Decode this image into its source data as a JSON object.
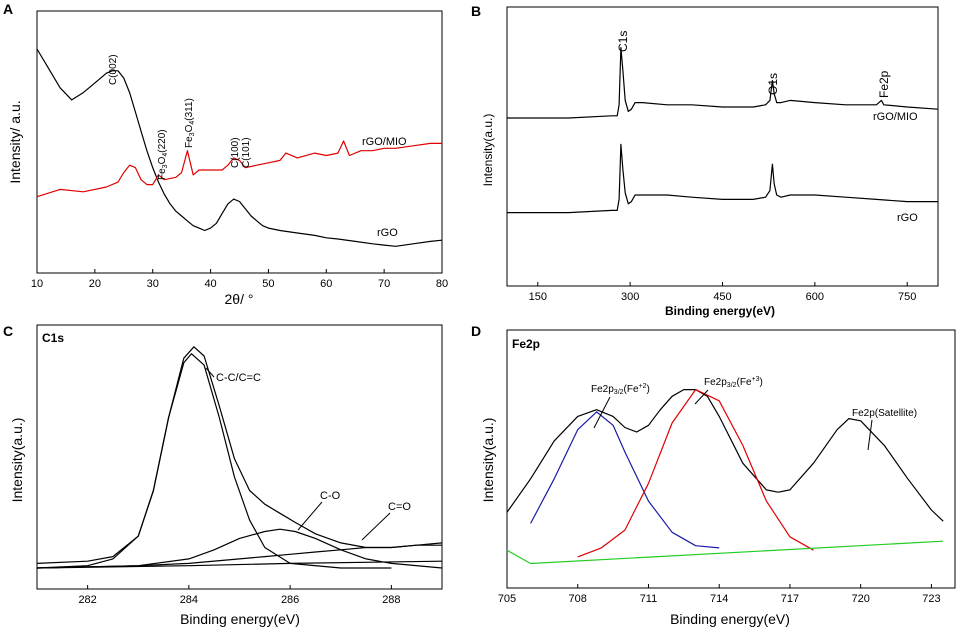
{
  "colors": {
    "black": "#000000",
    "red": "#e00000",
    "blue": "#1a1aa6",
    "green": "#22cc22"
  },
  "chart_data": [
    {
      "panel": "A",
      "type": "line",
      "xlabel": "2θ/ °",
      "ylabel": "Intensity/ a.u.",
      "xlim": [
        10,
        80
      ],
      "ylim": [
        0,
        100
      ],
      "xticks": [
        "10",
        "20",
        "30",
        "40",
        "50",
        "60",
        "70",
        "80"
      ],
      "series": [
        {
          "name": "rGO",
          "color": "#000000",
          "x": [
            10,
            12,
            14,
            16,
            18,
            20,
            22,
            23,
            24,
            25,
            26,
            27,
            28,
            29,
            30,
            31,
            32,
            33,
            34,
            35,
            36,
            37,
            38,
            39,
            40,
            41,
            42,
            43,
            44,
            45,
            46,
            47,
            48,
            49,
            50,
            52,
            55,
            58,
            60,
            62,
            65,
            68,
            70,
            72,
            75,
            78,
            80
          ],
          "y": [
            88,
            80,
            72,
            67,
            70,
            74,
            78,
            79,
            79,
            76,
            70,
            62,
            54,
            46,
            39,
            33,
            28,
            24,
            21,
            19,
            17,
            15,
            14,
            13,
            14,
            16,
            20,
            24,
            26,
            25,
            22,
            19,
            17,
            15,
            14,
            13,
            12,
            11,
            10,
            9.5,
            8.5,
            7.5,
            7,
            6.5,
            7.5,
            8.5,
            9
          ]
        },
        {
          "name": "rGO/MIO",
          "color": "#e00000",
          "x": [
            10,
            14,
            18,
            22,
            24,
            25,
            26,
            27,
            28,
            29,
            30,
            31,
            32,
            34,
            35,
            36,
            37,
            38,
            40,
            42,
            43,
            44,
            45,
            46,
            48,
            50,
            52,
            53,
            55,
            58,
            60,
            62,
            63,
            64,
            66,
            68,
            70,
            72,
            75,
            78,
            80
          ],
          "y": [
            27,
            30,
            29,
            31,
            33,
            37,
            40,
            39,
            34,
            32,
            32,
            36,
            34,
            35,
            37,
            46,
            36,
            38,
            38,
            38,
            40,
            43,
            42,
            39,
            40,
            41,
            42,
            45,
            43,
            45,
            44,
            45,
            50,
            44,
            46,
            46,
            47,
            47,
            48,
            49,
            49
          ]
        }
      ],
      "annotations": [
        "C(002)",
        "Fe3O4(220)",
        "Fe3O4(311)",
        "C(100)",
        "C(101)"
      ],
      "legend": [
        "rGO/MIO",
        "rGO"
      ]
    },
    {
      "panel": "B",
      "type": "line",
      "xlabel": "Binding energy(eV)",
      "ylabel": "Intensity(a.u.)",
      "xlim": [
        100,
        800
      ],
      "ylim": [
        0,
        100
      ],
      "xticks": [
        "150",
        "300",
        "450",
        "600",
        "750"
      ],
      "series": [
        {
          "name": "rGO/MIO",
          "color": "#000000",
          "x": [
            100,
            200,
            270,
            279,
            282,
            285,
            288,
            292,
            297,
            302,
            308,
            320,
            360,
            400,
            450,
            500,
            520,
            527,
            531,
            534,
            538,
            545,
            560,
            600,
            650,
            700,
            708,
            712,
            750,
            800
          ],
          "y": [
            60,
            60,
            61,
            61,
            66,
            92,
            82,
            68,
            63,
            64,
            67,
            67,
            66,
            66,
            65,
            65,
            66,
            68,
            77,
            71,
            67,
            67,
            68,
            67,
            66,
            66,
            68,
            66,
            65,
            64
          ]
        },
        {
          "name": "rGO",
          "color": "#000000",
          "x": [
            100,
            200,
            270,
            279,
            282,
            285,
            288,
            292,
            297,
            302,
            308,
            320,
            360,
            400,
            450,
            500,
            520,
            527,
            531,
            534,
            538,
            545,
            560,
            600,
            650,
            700,
            750,
            800
          ],
          "y": [
            17,
            17,
            18,
            18,
            23,
            48,
            37,
            26,
            21,
            22,
            25,
            25,
            25,
            24,
            23,
            23,
            24,
            27,
            39,
            30,
            25,
            24,
            25,
            25,
            24,
            23,
            22,
            22
          ]
        }
      ],
      "annotations": [
        "C1s",
        "O1s",
        "Fe2p"
      ],
      "legend": [
        "rGO/MIO",
        "rGO"
      ]
    },
    {
      "panel": "C",
      "type": "line",
      "title": "C1s",
      "xlabel": "Binding energy(eV)",
      "ylabel": "Intensity(a.u.)",
      "xlim": [
        281,
        289
      ],
      "ylim": [
        0,
        100
      ],
      "xticks": [
        "282",
        "284",
        "286",
        "288"
      ],
      "series": [
        {
          "name": "envelope",
          "color": "#000000",
          "x": [
            281,
            282,
            282.5,
            283,
            283.3,
            283.6,
            283.9,
            284.1,
            284.3,
            284.6,
            284.9,
            285.2,
            285.5,
            285.8,
            286.1,
            286.5,
            287,
            287.5,
            288,
            288.5,
            289
          ],
          "y": [
            2,
            3,
            5,
            14,
            34,
            66,
            92,
            97,
            93,
            71,
            48,
            34,
            28,
            24,
            20,
            15,
            11,
            9,
            9,
            10,
            11
          ]
        },
        {
          "name": "C-C/C=C",
          "color": "#000000",
          "x": [
            281,
            282,
            282.5,
            283,
            283.3,
            283.6,
            283.9,
            284.05,
            284.3,
            284.6,
            284.9,
            285.2,
            285.5,
            286,
            287,
            288
          ],
          "y": [
            0,
            1,
            4,
            14,
            34,
            66,
            90,
            94,
            89,
            66,
            40,
            21,
            9,
            2,
            0,
            0
          ]
        },
        {
          "name": "C-O",
          "color": "#000000",
          "x": [
            281,
            283,
            284,
            284.5,
            285,
            285.5,
            285.8,
            286.1,
            286.5,
            287,
            287.5,
            288,
            289
          ],
          "y": [
            0,
            1,
            4,
            8,
            13,
            16,
            17,
            16,
            13,
            8,
            4,
            2,
            0
          ]
        },
        {
          "name": "C=O",
          "color": "#000000",
          "x": [
            281,
            283,
            284,
            285,
            285.5,
            286,
            286.5,
            287,
            287.5,
            288,
            288.5,
            289
          ],
          "y": [
            0,
            1,
            2,
            4,
            5,
            6,
            7,
            8,
            9,
            9,
            10,
            10
          ]
        },
        {
          "name": "baseline",
          "color": "#000000",
          "x": [
            281,
            284,
            286,
            289
          ],
          "y": [
            0,
            1,
            2,
            3
          ]
        }
      ],
      "annotations": [
        "C-C/C=C",
        "C-O",
        "C=O"
      ]
    },
    {
      "panel": "D",
      "type": "line",
      "title": "Fe2p",
      "xlabel": "Binding energy(eV)",
      "ylabel": "Intensity(a.u.)",
      "xlim": [
        705,
        724
      ],
      "ylim": [
        0,
        100
      ],
      "xticks": [
        "705",
        "708",
        "711",
        "714",
        "717",
        "720",
        "723"
      ],
      "series": [
        {
          "name": "envelope",
          "color": "#000000",
          "x": [
            705,
            706,
            707,
            708,
            708.8,
            709.5,
            710,
            710.5,
            711,
            711.5,
            712,
            712.5,
            713,
            713.5,
            714,
            715,
            716,
            716.5,
            717,
            718,
            719,
            719.5,
            720,
            721,
            722,
            723,
            723.5
          ],
          "y": [
            25,
            40,
            57,
            68,
            71,
            68,
            63,
            61,
            64,
            71,
            77,
            80,
            80,
            77,
            68,
            47,
            35,
            34,
            35,
            47,
            62,
            67,
            66,
            55,
            40,
            26,
            21
          ]
        },
        {
          "name": "Fe2p3/2(Fe+2)",
          "color": "#1a1aa6",
          "x": [
            706,
            707,
            708,
            708.8,
            709.5,
            710,
            711,
            712,
            713,
            714
          ],
          "y": [
            20,
            40,
            62,
            70,
            64,
            52,
            30,
            16,
            10,
            9
          ]
        },
        {
          "name": "Fe2p3/2(Fe+3)",
          "color": "#e00000",
          "x": [
            708,
            709,
            710,
            711,
            712,
            713,
            714,
            715,
            716,
            717,
            718
          ],
          "y": [
            5,
            9,
            17,
            38,
            65,
            80,
            75,
            55,
            30,
            14,
            8
          ]
        },
        {
          "name": "baseline",
          "color": "#22cc22",
          "x": [
            705,
            706,
            723.5
          ],
          "y": [
            8,
            2,
            12
          ]
        }
      ],
      "annotations": [
        "Fe2p3/2(Fe+2)",
        "Fe2p3/2(Fe+3)",
        "Fe2p(Satellite)"
      ]
    }
  ]
}
